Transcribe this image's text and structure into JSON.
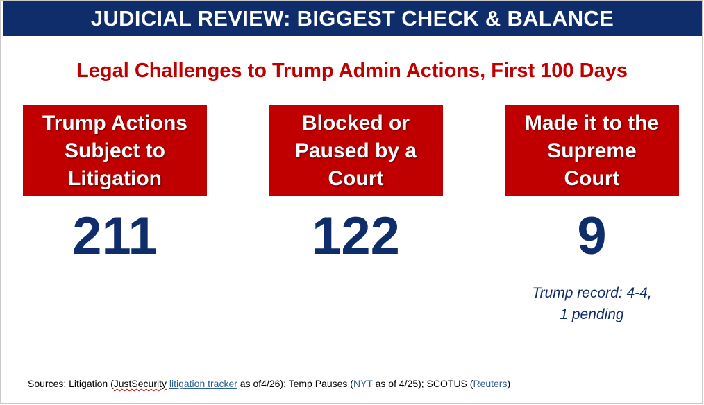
{
  "header": {
    "title": "JUDICIAL REVIEW: BIGGEST CHECK & BALANCE"
  },
  "subtitle": "Legal Challenges to Trump Admin Actions, First 100 Days",
  "stats": [
    {
      "label_lines": [
        "Trump Actions",
        "Subject to",
        "Litigation"
      ],
      "value": "211"
    },
    {
      "label_lines": [
        "Blocked or",
        "Paused by a",
        "Court"
      ],
      "value": "122"
    },
    {
      "label_lines": [
        "Made it to the",
        "Supreme",
        "Court"
      ],
      "value": "9",
      "note_lines": [
        "Trump record: 4-4,",
        "1 pending"
      ]
    }
  ],
  "sources": {
    "prefix": "Sources: Litigation (",
    "justsecurity": "JustSecurity",
    "tracker_link": "litigation tracker",
    "mid1": " as of4/26); Temp Pauses (",
    "nyt_link": "NYT",
    "mid2": " as of 4/25); SCOTUS (",
    "reuters_link": "Reuters",
    "suffix": ")"
  },
  "colors": {
    "navy": "#0f2d6b",
    "red": "#c00000",
    "link": "#2f5f8f"
  }
}
